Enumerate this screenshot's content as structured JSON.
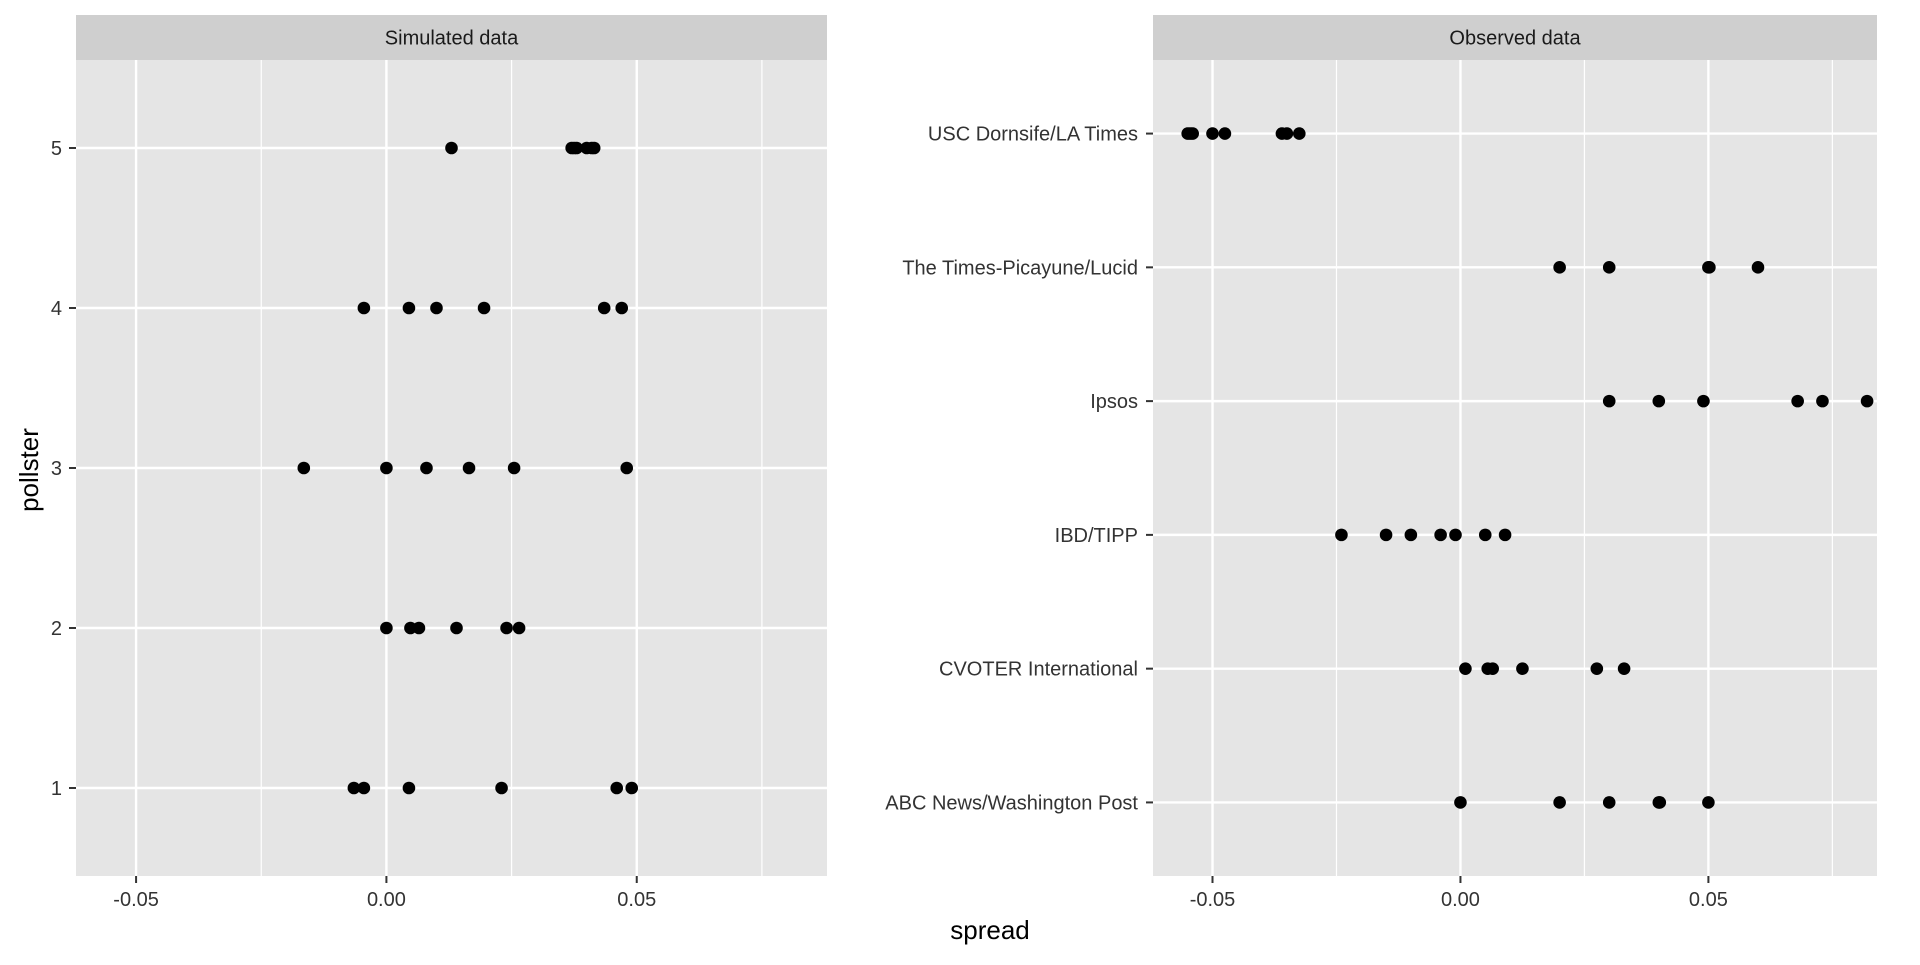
{
  "figure": {
    "xlabel": "spread",
    "ylabel": "pollster"
  },
  "colors": {
    "panel_bg": "#e5e5e5",
    "strip_bg": "#cfcfcf",
    "grid": "#ffffff",
    "point": "#000000",
    "text": "#333333",
    "axis_title": "#000000"
  },
  "chart_data": [
    {
      "type": "scatter",
      "title": "Simulated data",
      "xlabel": "spread",
      "ylabel": "pollster",
      "xlim": [
        -0.062,
        0.088
      ],
      "ylim": [
        0.45,
        5.55
      ],
      "x_ticks": [
        -0.05,
        0.0,
        0.05
      ],
      "x_tick_labels": [
        "-0.05",
        "0.00",
        "0.05"
      ],
      "categories": [
        "1",
        "2",
        "3",
        "4",
        "5"
      ],
      "grid": true,
      "points": [
        {
          "y": "5",
          "x": [
            0.013,
            0.037,
            0.0375,
            0.038,
            0.04,
            0.041,
            0.0415
          ]
        },
        {
          "y": "4",
          "x": [
            -0.0045,
            0.0045,
            0.01,
            0.0195,
            0.0435,
            0.047
          ]
        },
        {
          "y": "3",
          "x": [
            -0.0165,
            0.0,
            0.008,
            0.0165,
            0.0255,
            0.048
          ]
        },
        {
          "y": "2",
          "x": [
            0.0,
            0.0048,
            0.0065,
            0.014,
            0.024,
            0.0265
          ]
        },
        {
          "y": "1",
          "x": [
            -0.0065,
            -0.0045,
            0.0045,
            0.023,
            0.046,
            0.049
          ]
        }
      ]
    },
    {
      "type": "scatter",
      "title": "Observed data",
      "xlabel": "spread",
      "ylabel": "pollster",
      "xlim": [
        -0.062,
        0.084
      ],
      "ylim": [
        0.45,
        6.55
      ],
      "x_ticks": [
        -0.05,
        0.0,
        0.05
      ],
      "x_tick_labels": [
        "-0.05",
        "0.00",
        "0.05"
      ],
      "categories": [
        "ABC News/Washington Post",
        "CVOTER International",
        "IBD/TIPP",
        "Ipsos",
        "The Times-Picayune/Lucid",
        "USC Dornsife/LA Times"
      ],
      "grid": true,
      "points": [
        {
          "y": "USC Dornsife/LA Times",
          "x": [
            -0.055,
            -0.0545,
            -0.054,
            -0.05,
            -0.0475,
            -0.036,
            -0.035,
            -0.0325
          ]
        },
        {
          "y": "The Times-Picayune/Lucid",
          "x": [
            0.02,
            0.03,
            0.05,
            0.0502,
            0.06
          ]
        },
        {
          "y": "Ipsos",
          "x": [
            0.03,
            0.04,
            0.049,
            0.068,
            0.073,
            0.082
          ]
        },
        {
          "y": "IBD/TIPP",
          "x": [
            -0.024,
            -0.015,
            -0.01,
            -0.004,
            -0.001,
            0.005,
            0.009
          ]
        },
        {
          "y": "CVOTER International",
          "x": [
            0.001,
            0.0055,
            0.0065,
            0.0125,
            0.0275,
            0.033
          ]
        },
        {
          "y": "ABC News/Washington Post",
          "x": [
            0.0,
            0.02,
            0.03,
            0.04,
            0.0402,
            0.05
          ]
        }
      ]
    }
  ]
}
